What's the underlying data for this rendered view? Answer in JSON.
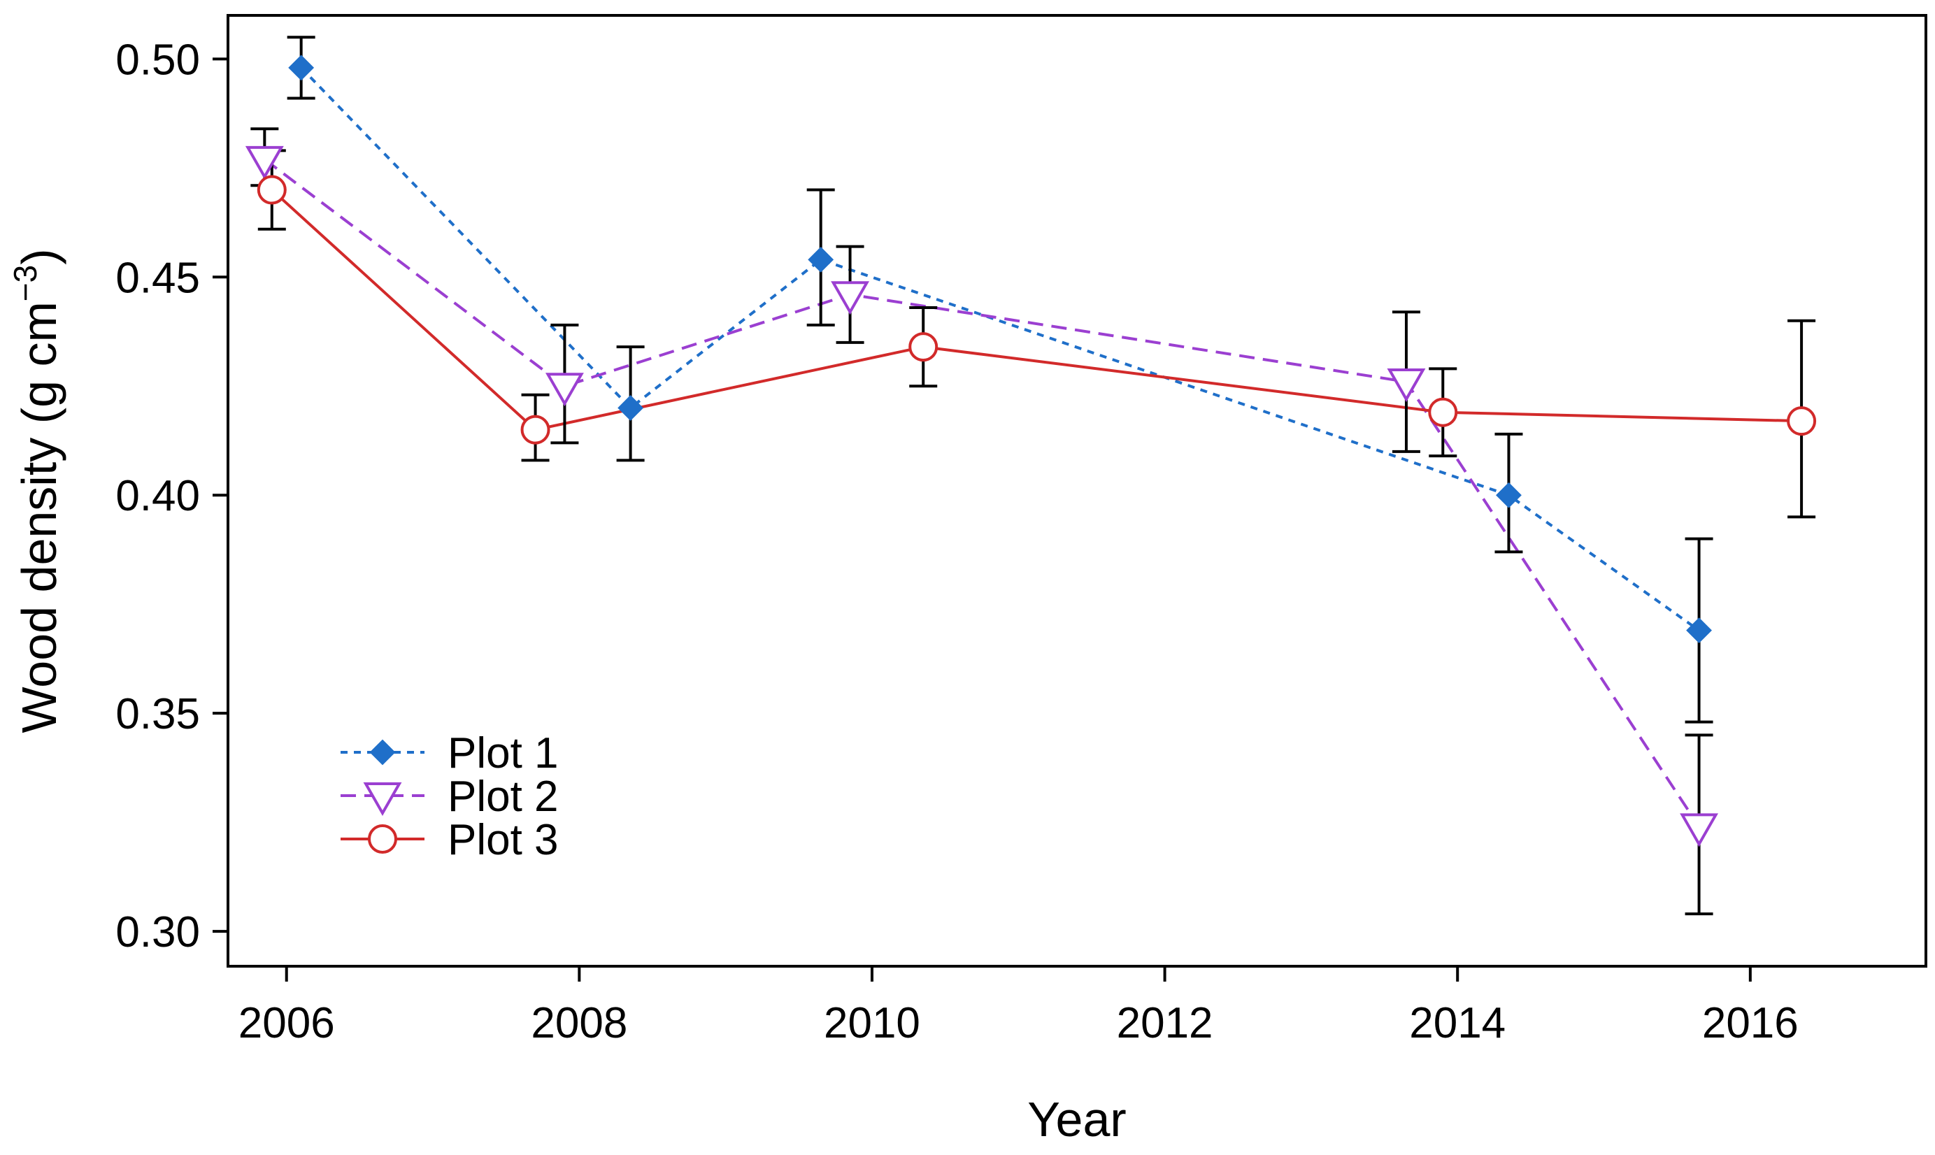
{
  "chart_data": {
    "type": "line",
    "title": "",
    "xlabel": "Year",
    "ylabel_main": "Wood density (g cm",
    "ylabel_sup": "−3",
    "ylabel_close": ")",
    "xlim": [
      2005.6,
      2017.2
    ],
    "ylim": [
      0.292,
      0.51
    ],
    "xticks": [
      2006,
      2008,
      2010,
      2012,
      2014,
      2016
    ],
    "xtick_labels": [
      "2006",
      "2008",
      "2010",
      "2012",
      "2014",
      "2016"
    ],
    "yticks": [
      0.3,
      0.35,
      0.4,
      0.45,
      0.5
    ],
    "ytick_labels": [
      "0.30",
      "0.35",
      "0.40",
      "0.45",
      "0.50"
    ],
    "legend_position": "bottom-left",
    "series": [
      {
        "name": "Plot 1",
        "color": "#1f6fc9",
        "marker": "diamond",
        "line_style": "dotted",
        "x": [
          2006.1,
          2008.35,
          2009.65,
          2014.35,
          2015.65
        ],
        "y": [
          0.498,
          0.42,
          0.454,
          0.4,
          0.369
        ],
        "err_low": [
          0.491,
          0.408,
          0.439,
          0.387,
          0.348
        ],
        "err_high": [
          0.505,
          0.434,
          0.47,
          0.414,
          0.39
        ]
      },
      {
        "name": "Plot 2",
        "color": "#9b3fd1",
        "marker": "triangle-down",
        "line_style": "dashed",
        "x": [
          2005.85,
          2007.9,
          2009.85,
          2013.65,
          2015.65
        ],
        "y": [
          0.477,
          0.425,
          0.446,
          0.426,
          0.324
        ],
        "err_low": [
          0.471,
          0.412,
          0.435,
          0.41,
          0.304
        ],
        "err_high": [
          0.484,
          0.439,
          0.457,
          0.442,
          0.345
        ]
      },
      {
        "name": "Plot 3",
        "color": "#d22a2a",
        "marker": "circle",
        "line_style": "solid",
        "x": [
          2005.9,
          2007.7,
          2010.35,
          2013.9,
          2016.35
        ],
        "y": [
          0.47,
          0.415,
          0.434,
          0.419,
          0.417
        ],
        "err_low": [
          0.461,
          0.408,
          0.425,
          0.409,
          0.395
        ],
        "err_high": [
          0.479,
          0.423,
          0.443,
          0.429,
          0.44
        ]
      }
    ]
  }
}
